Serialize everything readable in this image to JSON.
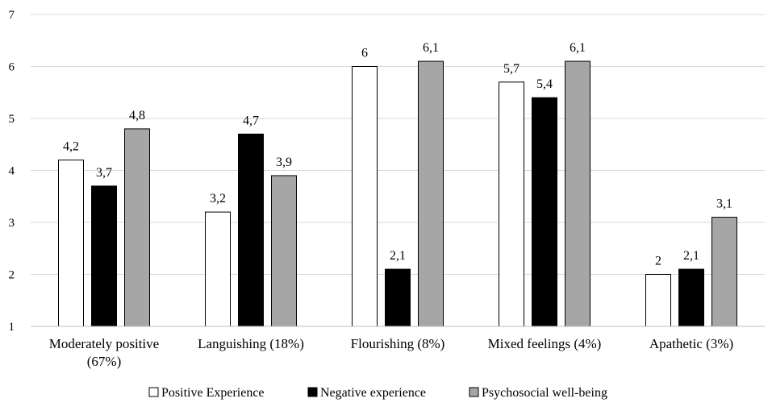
{
  "chart_data": {
    "type": "bar",
    "title": "",
    "xlabel": "",
    "ylabel": "",
    "ylim": [
      1,
      7
    ],
    "yticks": [
      "1",
      "2",
      "3",
      "4",
      "5",
      "6",
      "7"
    ],
    "grid": true,
    "legend_position": "bottom",
    "categories": [
      [
        "Moderately positive",
        "(67%)"
      ],
      [
        "Languishing (18%)"
      ],
      [
        "Flourishing (8%)"
      ],
      [
        "Mixed feelings (4%)"
      ],
      [
        "Apathetic (3%)"
      ]
    ],
    "series": [
      {
        "name": "Positive Experience",
        "color": "#ffffff",
        "values": [
          4.2,
          3.2,
          6,
          5.7,
          2
        ],
        "labels": [
          "4,2",
          "3,2",
          "6",
          "5,7",
          "2"
        ]
      },
      {
        "name": "Negative experience",
        "color": "#000000",
        "values": [
          3.7,
          4.7,
          2.1,
          5.4,
          2.1
        ],
        "labels": [
          "3,7",
          "4,7",
          "2,1",
          "5,4",
          "2,1"
        ]
      },
      {
        "name": "Psychosocial well-being",
        "color": "#a6a6a6",
        "values": [
          4.8,
          3.9,
          6.1,
          6.1,
          3.1
        ],
        "labels": [
          "4,8",
          "3,9",
          "6,1",
          "6,1",
          "3,1"
        ]
      }
    ]
  }
}
